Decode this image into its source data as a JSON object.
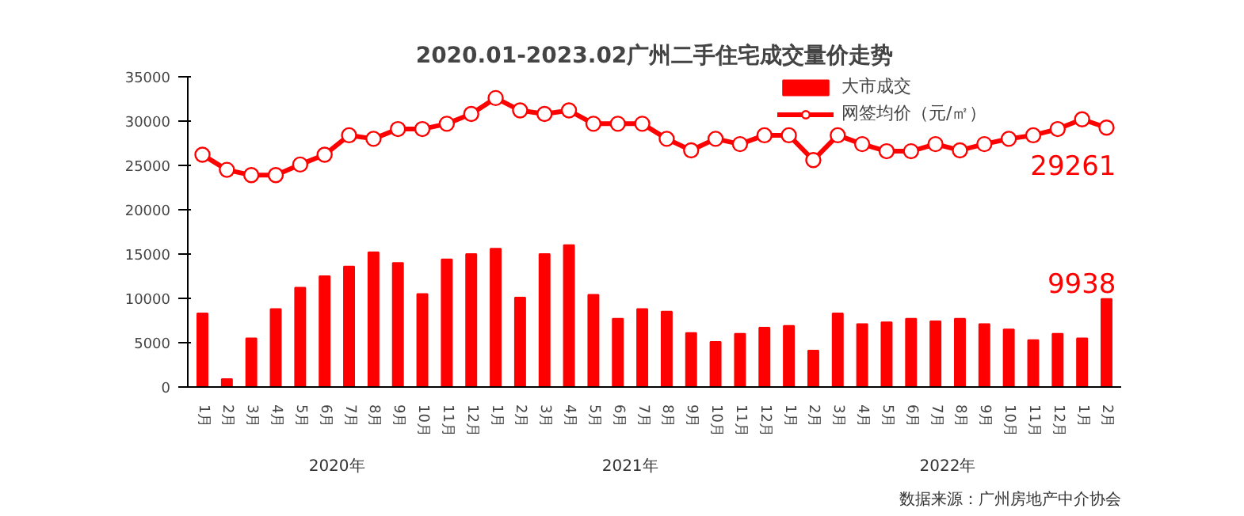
{
  "chart_data": {
    "type": "bar",
    "title": "2020.01-2023.02广州二手住宅成交量价走势",
    "categories": [
      "1月",
      "2月",
      "3月",
      "4月",
      "5月",
      "6月",
      "7月",
      "8月",
      "9月",
      "10月",
      "11月",
      "12月",
      "1月",
      "2月",
      "3月",
      "4月",
      "5月",
      "6月",
      "7月",
      "8月",
      "9月",
      "10月",
      "11月",
      "12月",
      "1月",
      "2月",
      "3月",
      "4月",
      "5月",
      "6月",
      "7月",
      "8月",
      "9月",
      "10月",
      "11月",
      "12月",
      "1月",
      "2月"
    ],
    "series": [
      {
        "name": "大市成交",
        "color": "#ff0000",
        "values": [
          8300,
          900,
          5500,
          8800,
          11200,
          12500,
          13600,
          15200,
          14000,
          10500,
          14400,
          15000,
          15600,
          10100,
          15000,
          16000,
          10400,
          7700,
          8800,
          8500,
          6100,
          5100,
          6000,
          6700,
          6900,
          4100,
          8300,
          7100,
          7300,
          7700,
          7400,
          7700,
          7100,
          6500,
          5300,
          6000,
          5500,
          9938
        ],
        "value_labels": [
          null,
          null,
          null,
          null,
          null,
          null,
          null,
          null,
          null,
          null,
          null,
          null,
          null,
          null,
          null,
          null,
          null,
          null,
          null,
          null,
          null,
          null,
          null,
          null,
          null,
          null,
          null,
          null,
          null,
          null,
          null,
          null,
          null,
          null,
          null,
          null,
          null,
          "9938"
        ]
      },
      {
        "name": "网签均价（元/㎡）",
        "type": "line",
        "color": "#ff0000",
        "marker": "circle",
        "values": [
          26200,
          24500,
          23900,
          23900,
          25100,
          26200,
          28400,
          28000,
          29100,
          29100,
          29700,
          30800,
          32600,
          31200,
          30800,
          31200,
          29700,
          29700,
          29700,
          28000,
          26700,
          28000,
          27400,
          28400,
          28400,
          25600,
          28400,
          27400,
          26600,
          26600,
          27400,
          26700,
          27400,
          28000,
          28400,
          29100,
          30200,
          29261
        ],
        "value_labels": [
          null,
          null,
          null,
          null,
          null,
          null,
          null,
          null,
          null,
          null,
          null,
          null,
          null,
          null,
          null,
          null,
          null,
          null,
          null,
          null,
          null,
          null,
          null,
          null,
          null,
          null,
          null,
          null,
          null,
          null,
          null,
          null,
          null,
          null,
          null,
          null,
          null,
          "29261"
        ]
      }
    ],
    "ylim": [
      0,
      35000
    ],
    "yticks": [
      0,
      5000,
      10000,
      15000,
      20000,
      25000,
      30000,
      35000
    ],
    "grid": false,
    "legend": "top right",
    "annotations": [
      "2020年",
      "2021年",
      "2022年",
      "数据来源：广州房地产中介协会"
    ]
  }
}
